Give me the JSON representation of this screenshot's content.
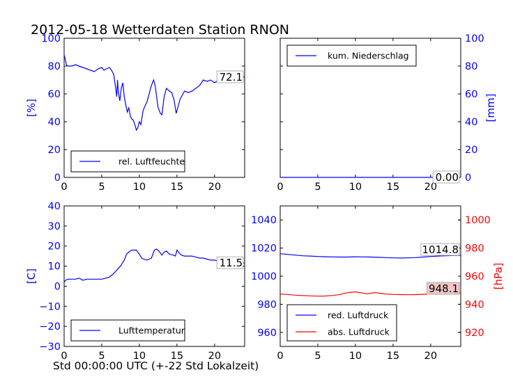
{
  "figure": {
    "title": "2012-05-18 Wetterdaten Station RNON",
    "xlabel": "Std 00:00:00 UTC (+-22 Std Lokalzeit)"
  },
  "colors": {
    "primary": "#0000ff",
    "secondary": "#ff0000",
    "label_box": "#ffffff",
    "label_box_red": "#f4c6c6"
  },
  "chart_data": [
    {
      "type": "line",
      "panel": "top-left",
      "ylabel": "[%]",
      "xlim": [
        0,
        24
      ],
      "ylim": [
        0,
        100
      ],
      "xticks": [
        0,
        5,
        10,
        15,
        20
      ],
      "yticks": [
        0,
        20,
        40,
        60,
        80,
        100
      ],
      "grid": false,
      "legend_position": "lower-left",
      "current_value_label": "72.1",
      "series": [
        {
          "name": "rel. Luftfeuchte",
          "color": "#0000ff",
          "x": [
            0,
            0.1,
            0.3,
            0.5,
            1,
            1.5,
            2,
            2.5,
            3,
            3.5,
            4,
            4.5,
            5,
            5.3,
            5.6,
            6,
            6.3,
            6.6,
            6.8,
            7,
            7.1,
            7.2,
            7.4,
            7.6,
            7.8,
            8,
            8.2,
            8.4,
            8.6,
            8.8,
            9,
            9.2,
            9.4,
            9.6,
            9.8,
            10,
            10.2,
            10.5,
            10.8,
            11,
            11.3,
            11.6,
            11.9,
            12.1,
            12.3,
            12.5,
            12.8,
            13,
            13.3,
            13.6,
            14,
            14.3,
            14.6,
            14.9,
            15.1,
            15.4,
            15.7,
            16,
            16.5,
            17,
            17.5,
            18,
            18.5,
            19,
            19.5,
            20,
            20.5,
            21,
            21.5,
            22,
            22.5,
            23,
            23.5,
            24
          ],
          "y": [
            88,
            86,
            81,
            80,
            80,
            81,
            80,
            79,
            78,
            77,
            76,
            78,
            79,
            77,
            78,
            79,
            77,
            74,
            66,
            58,
            70,
            62,
            55,
            64,
            68,
            58,
            52,
            47,
            50,
            44,
            42,
            41,
            38,
            34,
            36,
            40,
            38,
            48,
            52,
            54,
            60,
            66,
            70,
            66,
            58,
            50,
            46,
            45,
            58,
            64,
            62,
            61,
            56,
            46,
            50,
            56,
            59,
            62,
            61,
            62,
            64,
            66,
            70,
            69,
            70,
            68,
            70,
            71,
            70,
            72,
            71,
            72,
            73,
            72
          ]
        }
      ]
    },
    {
      "type": "line",
      "panel": "top-right",
      "ylabel": "[mm]",
      "xlim": [
        0,
        24
      ],
      "ylim": [
        0,
        100
      ],
      "xticks": [
        0,
        5,
        10,
        15,
        20
      ],
      "yticks": [
        0,
        20,
        40,
        60,
        80,
        100
      ],
      "grid": false,
      "legend_position": "upper-left",
      "current_value_label": "0.00",
      "series": [
        {
          "name": "kum. Niederschlag",
          "color": "#0000ff",
          "x": [
            0,
            24
          ],
          "y": [
            0,
            0
          ]
        }
      ]
    },
    {
      "type": "line",
      "panel": "bottom-left",
      "ylabel": "[C]",
      "xlim": [
        0,
        24
      ],
      "ylim": [
        -30,
        40
      ],
      "xticks": [
        0,
        5,
        10,
        15,
        20
      ],
      "yticks": [
        -30,
        -20,
        -10,
        0,
        10,
        20,
        30,
        40
      ],
      "grid": false,
      "legend_position": "lower-left",
      "current_value_label": "11.5",
      "series": [
        {
          "name": "Lufttemperatur",
          "color": "#0000ff",
          "x": [
            0,
            0.2,
            0.5,
            1,
            1.5,
            2,
            2.5,
            3,
            3.5,
            4,
            4.5,
            5,
            5.5,
            6,
            6.5,
            7,
            7.5,
            8,
            8.3,
            8.6,
            9,
            9.3,
            9.6,
            10,
            10.3,
            10.6,
            11,
            11.3,
            11.6,
            12,
            12.3,
            12.6,
            13,
            13.3,
            13.6,
            14,
            14.5,
            14.8,
            15,
            15.3,
            15.6,
            16,
            16.5,
            17,
            17.5,
            18,
            18.5,
            19,
            19.5,
            20,
            20.5,
            21,
            21.5,
            22,
            22.5,
            23,
            23.5,
            24
          ],
          "y": [
            2,
            3,
            3.5,
            3.5,
            3.5,
            4,
            3,
            3.5,
            3.5,
            3.5,
            3.5,
            3.5,
            4,
            4.5,
            6,
            8,
            10,
            13,
            16,
            17,
            18,
            18,
            18,
            16,
            14,
            13.5,
            13,
            13.5,
            14,
            18,
            18.5,
            17.5,
            15.5,
            17,
            17.5,
            16,
            15.5,
            15,
            18,
            16.5,
            15.5,
            15,
            15,
            15,
            14.5,
            14,
            14,
            13.5,
            13,
            13,
            12.5,
            12.5,
            12,
            12,
            11.8,
            11.5,
            11.5,
            11.5
          ]
        }
      ]
    },
    {
      "type": "line",
      "panel": "bottom-right",
      "ylabel_right": "[hPa]",
      "xlim": [
        0,
        24
      ],
      "ylim_left": [
        950,
        1050
      ],
      "ylim_right": [
        910,
        1010
      ],
      "xticks": [
        0,
        5,
        10,
        15,
        20
      ],
      "yticks_left": [
        960,
        980,
        1000,
        1020,
        1040
      ],
      "yticks_right": [
        920,
        940,
        960,
        980,
        1000
      ],
      "grid": false,
      "legend_position": "lower-left",
      "current_value_labels": {
        "red_luftdruck": "1014.8",
        "abs_luftdruck": "948.1"
      },
      "series": [
        {
          "name": "red. Luftdruck",
          "color": "#0000ff",
          "axis": "left",
          "x": [
            0,
            1,
            2,
            3,
            4,
            5,
            6,
            7,
            8,
            9,
            10,
            11,
            12,
            13,
            14,
            15,
            16,
            17,
            18,
            19,
            20,
            21,
            22,
            23,
            24
          ],
          "y": [
            1016,
            1015.5,
            1015,
            1014.5,
            1014.3,
            1014,
            1013.8,
            1013.7,
            1013.6,
            1013.6,
            1013.8,
            1013.7,
            1013.6,
            1013.4,
            1013.2,
            1013.0,
            1012.9,
            1013.0,
            1013.2,
            1013.6,
            1014.0,
            1014.3,
            1014.5,
            1014.7,
            1014.8
          ]
        },
        {
          "name": "abs. Luftdruck",
          "color": "#ff0000",
          "axis": "right",
          "x": [
            0,
            1,
            2,
            3,
            4,
            5,
            6,
            7,
            8,
            8.5,
            9,
            9.5,
            10,
            10.5,
            11,
            11.5,
            12,
            12.5,
            13,
            13.5,
            14,
            14.5,
            15,
            16,
            17,
            18,
            19,
            20,
            21,
            22,
            23,
            24
          ],
          "y": [
            947.3,
            947.0,
            946.5,
            946.2,
            946.0,
            945.8,
            945.9,
            946.3,
            947.0,
            947.8,
            948.2,
            948.6,
            948.8,
            948.3,
            948.0,
            947.5,
            947.8,
            948.3,
            948.0,
            947.6,
            947.3,
            947.2,
            947.0,
            946.9,
            946.8,
            946.9,
            947.1,
            947.3,
            947.6,
            947.8,
            948.0,
            948.1
          ]
        }
      ]
    }
  ]
}
